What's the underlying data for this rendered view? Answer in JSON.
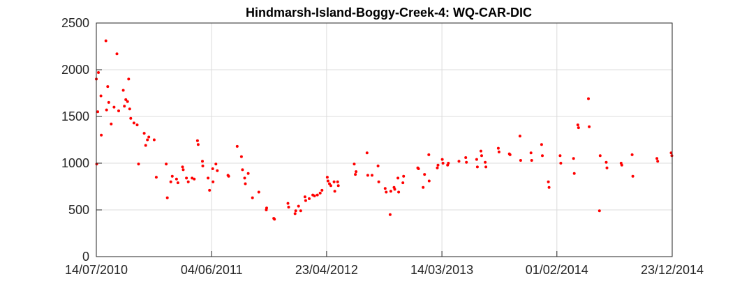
{
  "chart_data": {
    "type": "scatter",
    "title": "Hindmarsh-Island-Boggy-Creek-4: WQ-CAR-DIC",
    "xlabel": "",
    "ylabel": "",
    "xlim": [
      "2010-07-14",
      "2014-12-23"
    ],
    "ylim": [
      0,
      2500
    ],
    "x_ticks": [
      "14/07/2010",
      "04/06/2011",
      "23/04/2012",
      "14/03/2013",
      "01/02/2014",
      "23/12/2014"
    ],
    "y_ticks": [
      0,
      500,
      1000,
      1500,
      2000,
      2500
    ],
    "grid": true,
    "marker_color": "#ff0000",
    "points": [
      [
        "2010-07-14",
        1900
      ],
      [
        "2010-07-15",
        990
      ],
      [
        "2010-07-18",
        1550
      ],
      [
        "2010-07-20",
        1970
      ],
      [
        "2010-07-27",
        1720
      ],
      [
        "2010-07-28",
        1300
      ],
      [
        "2010-08-10",
        2310
      ],
      [
        "2010-08-12",
        1570
      ],
      [
        "2010-08-15",
        1820
      ],
      [
        "2010-08-18",
        1650
      ],
      [
        "2010-08-25",
        1420
      ],
      [
        "2010-09-02",
        1600
      ],
      [
        "2010-09-10",
        2170
      ],
      [
        "2010-09-15",
        1560
      ],
      [
        "2010-09-28",
        1780
      ],
      [
        "2010-10-01",
        1610
      ],
      [
        "2010-10-05",
        1680
      ],
      [
        "2010-10-10",
        1660
      ],
      [
        "2010-10-13",
        1900
      ],
      [
        "2010-10-16",
        1580
      ],
      [
        "2010-10-19",
        1480
      ],
      [
        "2010-10-28",
        1430
      ],
      [
        "2010-11-06",
        1410
      ],
      [
        "2010-11-10",
        990
      ],
      [
        "2010-11-26",
        1320
      ],
      [
        "2010-11-30",
        1190
      ],
      [
        "2010-12-05",
        1250
      ],
      [
        "2010-12-09",
        1280
      ],
      [
        "2010-12-24",
        1250
      ],
      [
        "2010-12-30",
        850
      ],
      [
        "2011-01-27",
        990
      ],
      [
        "2011-01-30",
        630
      ],
      [
        "2011-02-09",
        800
      ],
      [
        "2011-02-13",
        860
      ],
      [
        "2011-02-25",
        830
      ],
      [
        "2011-03-01",
        790
      ],
      [
        "2011-03-14",
        960
      ],
      [
        "2011-03-16",
        930
      ],
      [
        "2011-03-25",
        840
      ],
      [
        "2011-03-30",
        800
      ],
      [
        "2011-04-10",
        840
      ],
      [
        "2011-04-16",
        830
      ],
      [
        "2011-04-25",
        1240
      ],
      [
        "2011-04-27",
        1200
      ],
      [
        "2011-05-09",
        1020
      ],
      [
        "2011-05-10",
        970
      ],
      [
        "2011-05-25",
        840
      ],
      [
        "2011-05-29",
        710
      ],
      [
        "2011-06-07",
        940
      ],
      [
        "2011-06-08",
        800
      ],
      [
        "2011-06-16",
        990
      ],
      [
        "2011-06-20",
        920
      ],
      [
        "2011-07-20",
        870
      ],
      [
        "2011-07-22",
        860
      ],
      [
        "2011-08-15",
        1180
      ],
      [
        "2011-08-27",
        1070
      ],
      [
        "2011-08-30",
        930
      ],
      [
        "2011-09-05",
        840
      ],
      [
        "2011-09-07",
        780
      ],
      [
        "2011-09-15",
        890
      ],
      [
        "2011-09-27",
        630
      ],
      [
        "2011-10-15",
        690
      ],
      [
        "2011-11-05",
        500
      ],
      [
        "2011-11-06",
        520
      ],
      [
        "2011-11-26",
        410
      ],
      [
        "2011-11-28",
        400
      ],
      [
        "2012-01-05",
        570
      ],
      [
        "2012-01-07",
        530
      ],
      [
        "2012-01-25",
        460
      ],
      [
        "2012-01-27",
        490
      ],
      [
        "2012-02-04",
        540
      ],
      [
        "2012-02-10",
        490
      ],
      [
        "2012-02-22",
        640
      ],
      [
        "2012-02-24",
        600
      ],
      [
        "2012-03-05",
        620
      ],
      [
        "2012-03-15",
        660
      ],
      [
        "2012-03-20",
        650
      ],
      [
        "2012-03-28",
        660
      ],
      [
        "2012-04-05",
        680
      ],
      [
        "2012-04-10",
        710
      ],
      [
        "2012-04-25",
        850
      ],
      [
        "2012-04-27",
        810
      ],
      [
        "2012-05-01",
        780
      ],
      [
        "2012-05-05",
        760
      ],
      [
        "2012-05-14",
        800
      ],
      [
        "2012-05-16",
        700
      ],
      [
        "2012-05-24",
        800
      ],
      [
        "2012-05-26",
        760
      ],
      [
        "2012-07-10",
        990
      ],
      [
        "2012-07-13",
        880
      ],
      [
        "2012-07-15",
        910
      ],
      [
        "2012-08-15",
        1110
      ],
      [
        "2012-08-17",
        870
      ],
      [
        "2012-08-29",
        870
      ],
      [
        "2012-09-15",
        970
      ],
      [
        "2012-09-17",
        800
      ],
      [
        "2012-10-05",
        730
      ],
      [
        "2012-10-08",
        690
      ],
      [
        "2012-10-19",
        450
      ],
      [
        "2012-10-21",
        700
      ],
      [
        "2012-10-30",
        740
      ],
      [
        "2012-11-01",
        720
      ],
      [
        "2012-11-10",
        840
      ],
      [
        "2012-11-12",
        690
      ],
      [
        "2012-11-24",
        790
      ],
      [
        "2012-11-26",
        860
      ],
      [
        "2013-01-05",
        950
      ],
      [
        "2013-01-07",
        940
      ],
      [
        "2013-01-20",
        740
      ],
      [
        "2013-01-24",
        880
      ],
      [
        "2013-02-05",
        1090
      ],
      [
        "2013-02-06",
        810
      ],
      [
        "2013-03-01",
        950
      ],
      [
        "2013-03-03",
        980
      ],
      [
        "2013-03-15",
        1040
      ],
      [
        "2013-03-17",
        1000
      ],
      [
        "2013-03-30",
        980
      ],
      [
        "2013-04-01",
        1000
      ],
      [
        "2013-05-01",
        1020
      ],
      [
        "2013-05-20",
        1060
      ],
      [
        "2013-05-22",
        1010
      ],
      [
        "2013-06-20",
        1040
      ],
      [
        "2013-06-22",
        960
      ],
      [
        "2013-07-02",
        1130
      ],
      [
        "2013-07-04",
        1080
      ],
      [
        "2013-07-14",
        1010
      ],
      [
        "2013-07-16",
        960
      ],
      [
        "2013-08-20",
        1160
      ],
      [
        "2013-08-22",
        1120
      ],
      [
        "2013-09-20",
        1100
      ],
      [
        "2013-09-22",
        1090
      ],
      [
        "2013-10-20",
        1290
      ],
      [
        "2013-10-22",
        1030
      ],
      [
        "2013-11-20",
        1110
      ],
      [
        "2013-11-22",
        1030
      ],
      [
        "2013-12-20",
        1200
      ],
      [
        "2013-12-22",
        1080
      ],
      [
        "2014-01-08",
        800
      ],
      [
        "2014-01-10",
        740
      ],
      [
        "2014-02-10",
        1080
      ],
      [
        "2014-02-12",
        1000
      ],
      [
        "2014-03-20",
        1050
      ],
      [
        "2014-03-22",
        890
      ],
      [
        "2014-04-01",
        1410
      ],
      [
        "2014-04-03",
        1380
      ],
      [
        "2014-05-01",
        1690
      ],
      [
        "2014-05-03",
        1390
      ],
      [
        "2014-06-01",
        490
      ],
      [
        "2014-06-03",
        1080
      ],
      [
        "2014-06-20",
        1010
      ],
      [
        "2014-06-22",
        950
      ],
      [
        "2014-08-01",
        1000
      ],
      [
        "2014-08-03",
        980
      ],
      [
        "2014-09-01",
        1090
      ],
      [
        "2014-09-03",
        860
      ],
      [
        "2014-11-10",
        1050
      ],
      [
        "2014-11-12",
        1020
      ],
      [
        "2014-12-20",
        1110
      ],
      [
        "2014-12-22",
        1080
      ]
    ]
  }
}
